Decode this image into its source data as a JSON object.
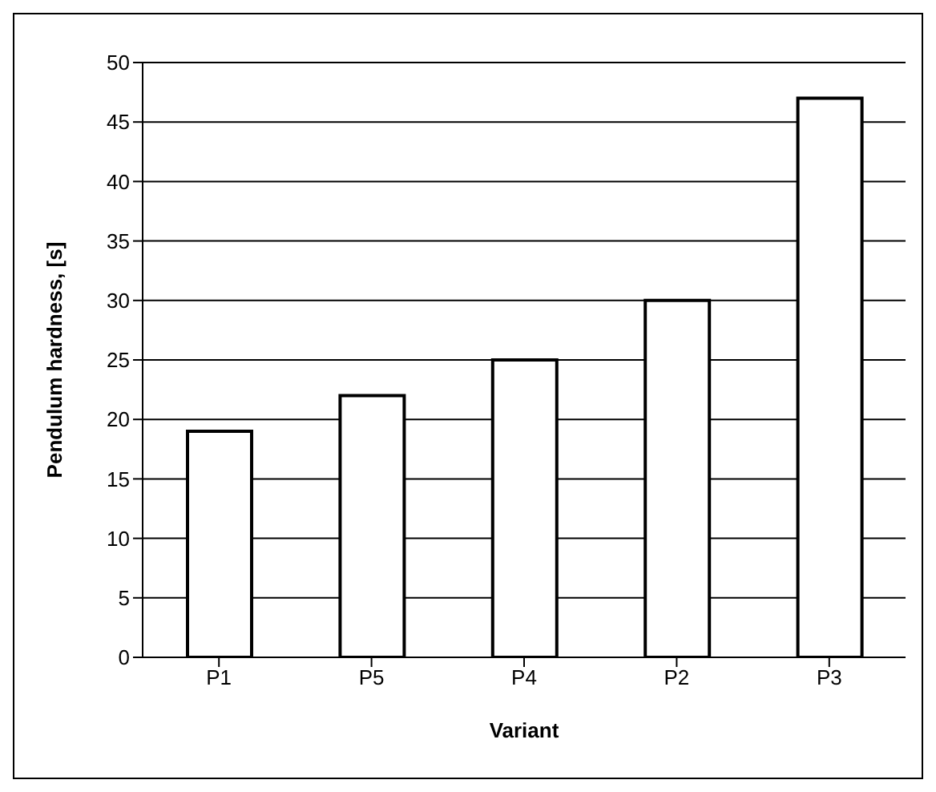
{
  "chart_data": {
    "type": "bar",
    "xlabel": "Variant",
    "ylabel": "Pendulum hardness, [s]",
    "categories": [
      "P1",
      "P5",
      "P4",
      "P2",
      "P3"
    ],
    "values": [
      19,
      22,
      25,
      30,
      47
    ],
    "color": "#ffffff",
    "ylim": [
      0,
      50
    ],
    "yticks": [
      0,
      5,
      10,
      15,
      20,
      25,
      30,
      35,
      40,
      45,
      50
    ],
    "grid": "y"
  }
}
